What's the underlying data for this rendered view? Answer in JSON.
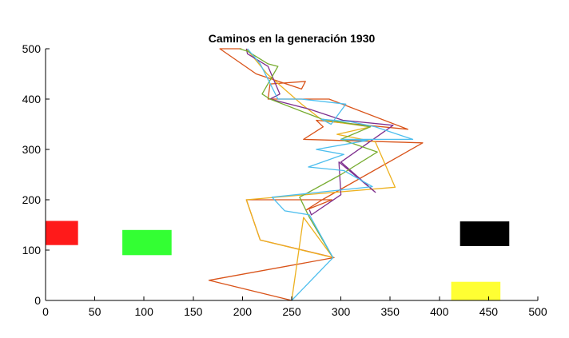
{
  "chart_data": {
    "type": "line",
    "title": "Caminos en la generación 1930",
    "xlabel": "",
    "ylabel": "",
    "xlim": [
      0,
      500
    ],
    "ylim": [
      0,
      500
    ],
    "xticks": [
      0,
      50,
      100,
      150,
      200,
      250,
      300,
      350,
      400,
      450,
      500
    ],
    "yticks": [
      0,
      100,
      200,
      300,
      400,
      500
    ],
    "grid": false,
    "obstacles": [
      {
        "color": "#ff1a1a",
        "x": [
          0,
          33
        ],
        "y": [
          110,
          158
        ]
      },
      {
        "color": "#33ff33",
        "x": [
          78,
          128
        ],
        "y": [
          90,
          140
        ]
      },
      {
        "color": "#000000",
        "x": [
          421,
          471
        ],
        "y": [
          108,
          157
        ]
      },
      {
        "color": "#ffff33",
        "x": [
          412,
          462
        ],
        "y": [
          0,
          37
        ]
      }
    ],
    "series": [
      {
        "color": "#d95319",
        "x": [
          250,
          166,
          293,
          218,
          204,
          291,
          265,
          281,
          383,
          262,
          282,
          275,
          368,
          288,
          226,
          228,
          264,
          260,
          214,
          177,
          199
        ],
        "y": [
          0,
          40,
          85,
          120,
          200,
          200,
          180,
          200,
          313,
          320,
          345,
          358,
          340,
          400,
          400,
          430,
          435,
          420,
          450,
          500,
          500
        ]
      },
      {
        "color": "#edb120",
        "x": [
          250,
          262,
          292,
          218,
          204,
          355,
          335,
          296,
          330,
          281,
          260,
          225,
          204
        ],
        "y": [
          0,
          165,
          85,
          120,
          200,
          225,
          315,
          330,
          345,
          358,
          390,
          450,
          500
        ]
      },
      {
        "color": "#7e2f8e",
        "x": [
          268,
          270,
          300,
          298,
          335,
          300,
          353,
          302,
          268,
          228,
          238,
          226,
          205,
          204
        ],
        "y": [
          180,
          170,
          210,
          275,
          215,
          275,
          348,
          358,
          380,
          400,
          410,
          465,
          490,
          500
        ]
      },
      {
        "color": "#77ac30",
        "x": [
          292,
          268,
          258,
          300,
          337,
          300,
          330,
          281,
          228,
          220,
          236,
          226,
          205,
          197
        ],
        "y": [
          85,
          165,
          205,
          250,
          295,
          320,
          345,
          360,
          400,
          410,
          465,
          470,
          495,
          500
        ]
      },
      {
        "color": "#4dbeee",
        "x": [
          250,
          292,
          268,
          243,
          230,
          332,
          303,
          267,
          303,
          275,
          327,
          300,
          373,
          335,
          310,
          280,
          290,
          305,
          260,
          236,
          218,
          205
        ],
        "y": [
          0,
          85,
          170,
          178,
          205,
          226,
          258,
          265,
          290,
          300,
          318,
          320,
          320,
          345,
          355,
          360,
          350,
          390,
          400,
          400,
          470,
          500
        ]
      }
    ]
  }
}
